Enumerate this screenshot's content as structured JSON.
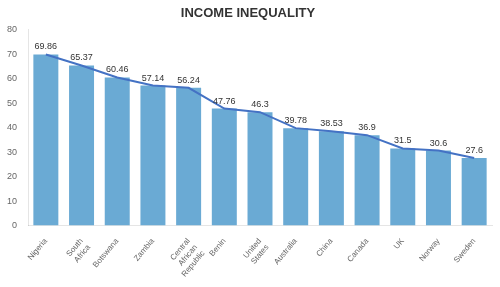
{
  "chart_data": {
    "type": "bar",
    "title": "INCOME INEQUALITY",
    "categories": [
      "Nigeria",
      "South\nAfrica",
      "Botswana",
      "Zambia",
      "Central\nAfrican\nRepublic",
      "Benin",
      "United\nStates",
      "Australia",
      "China",
      "Canada",
      "UK",
      "Norway",
      "Sweden"
    ],
    "series": [
      {
        "type": "bar",
        "color": "#6aaad4",
        "values": [
          69.86,
          65.37,
          60.46,
          57.14,
          56.24,
          47.76,
          46.3,
          39.78,
          38.53,
          36.9,
          31.5,
          30.6,
          27.6
        ]
      },
      {
        "type": "line",
        "color": "#4472c4",
        "values": [
          69.86,
          65.37,
          60.46,
          57.14,
          56.24,
          47.76,
          46.3,
          39.78,
          38.53,
          36.9,
          31.5,
          30.6,
          27.6
        ]
      }
    ],
    "ylim": [
      0,
      80
    ],
    "yticks": [
      0,
      10,
      20,
      30,
      40,
      50,
      60,
      70,
      80
    ],
    "grid": false,
    "data_labels": true
  }
}
